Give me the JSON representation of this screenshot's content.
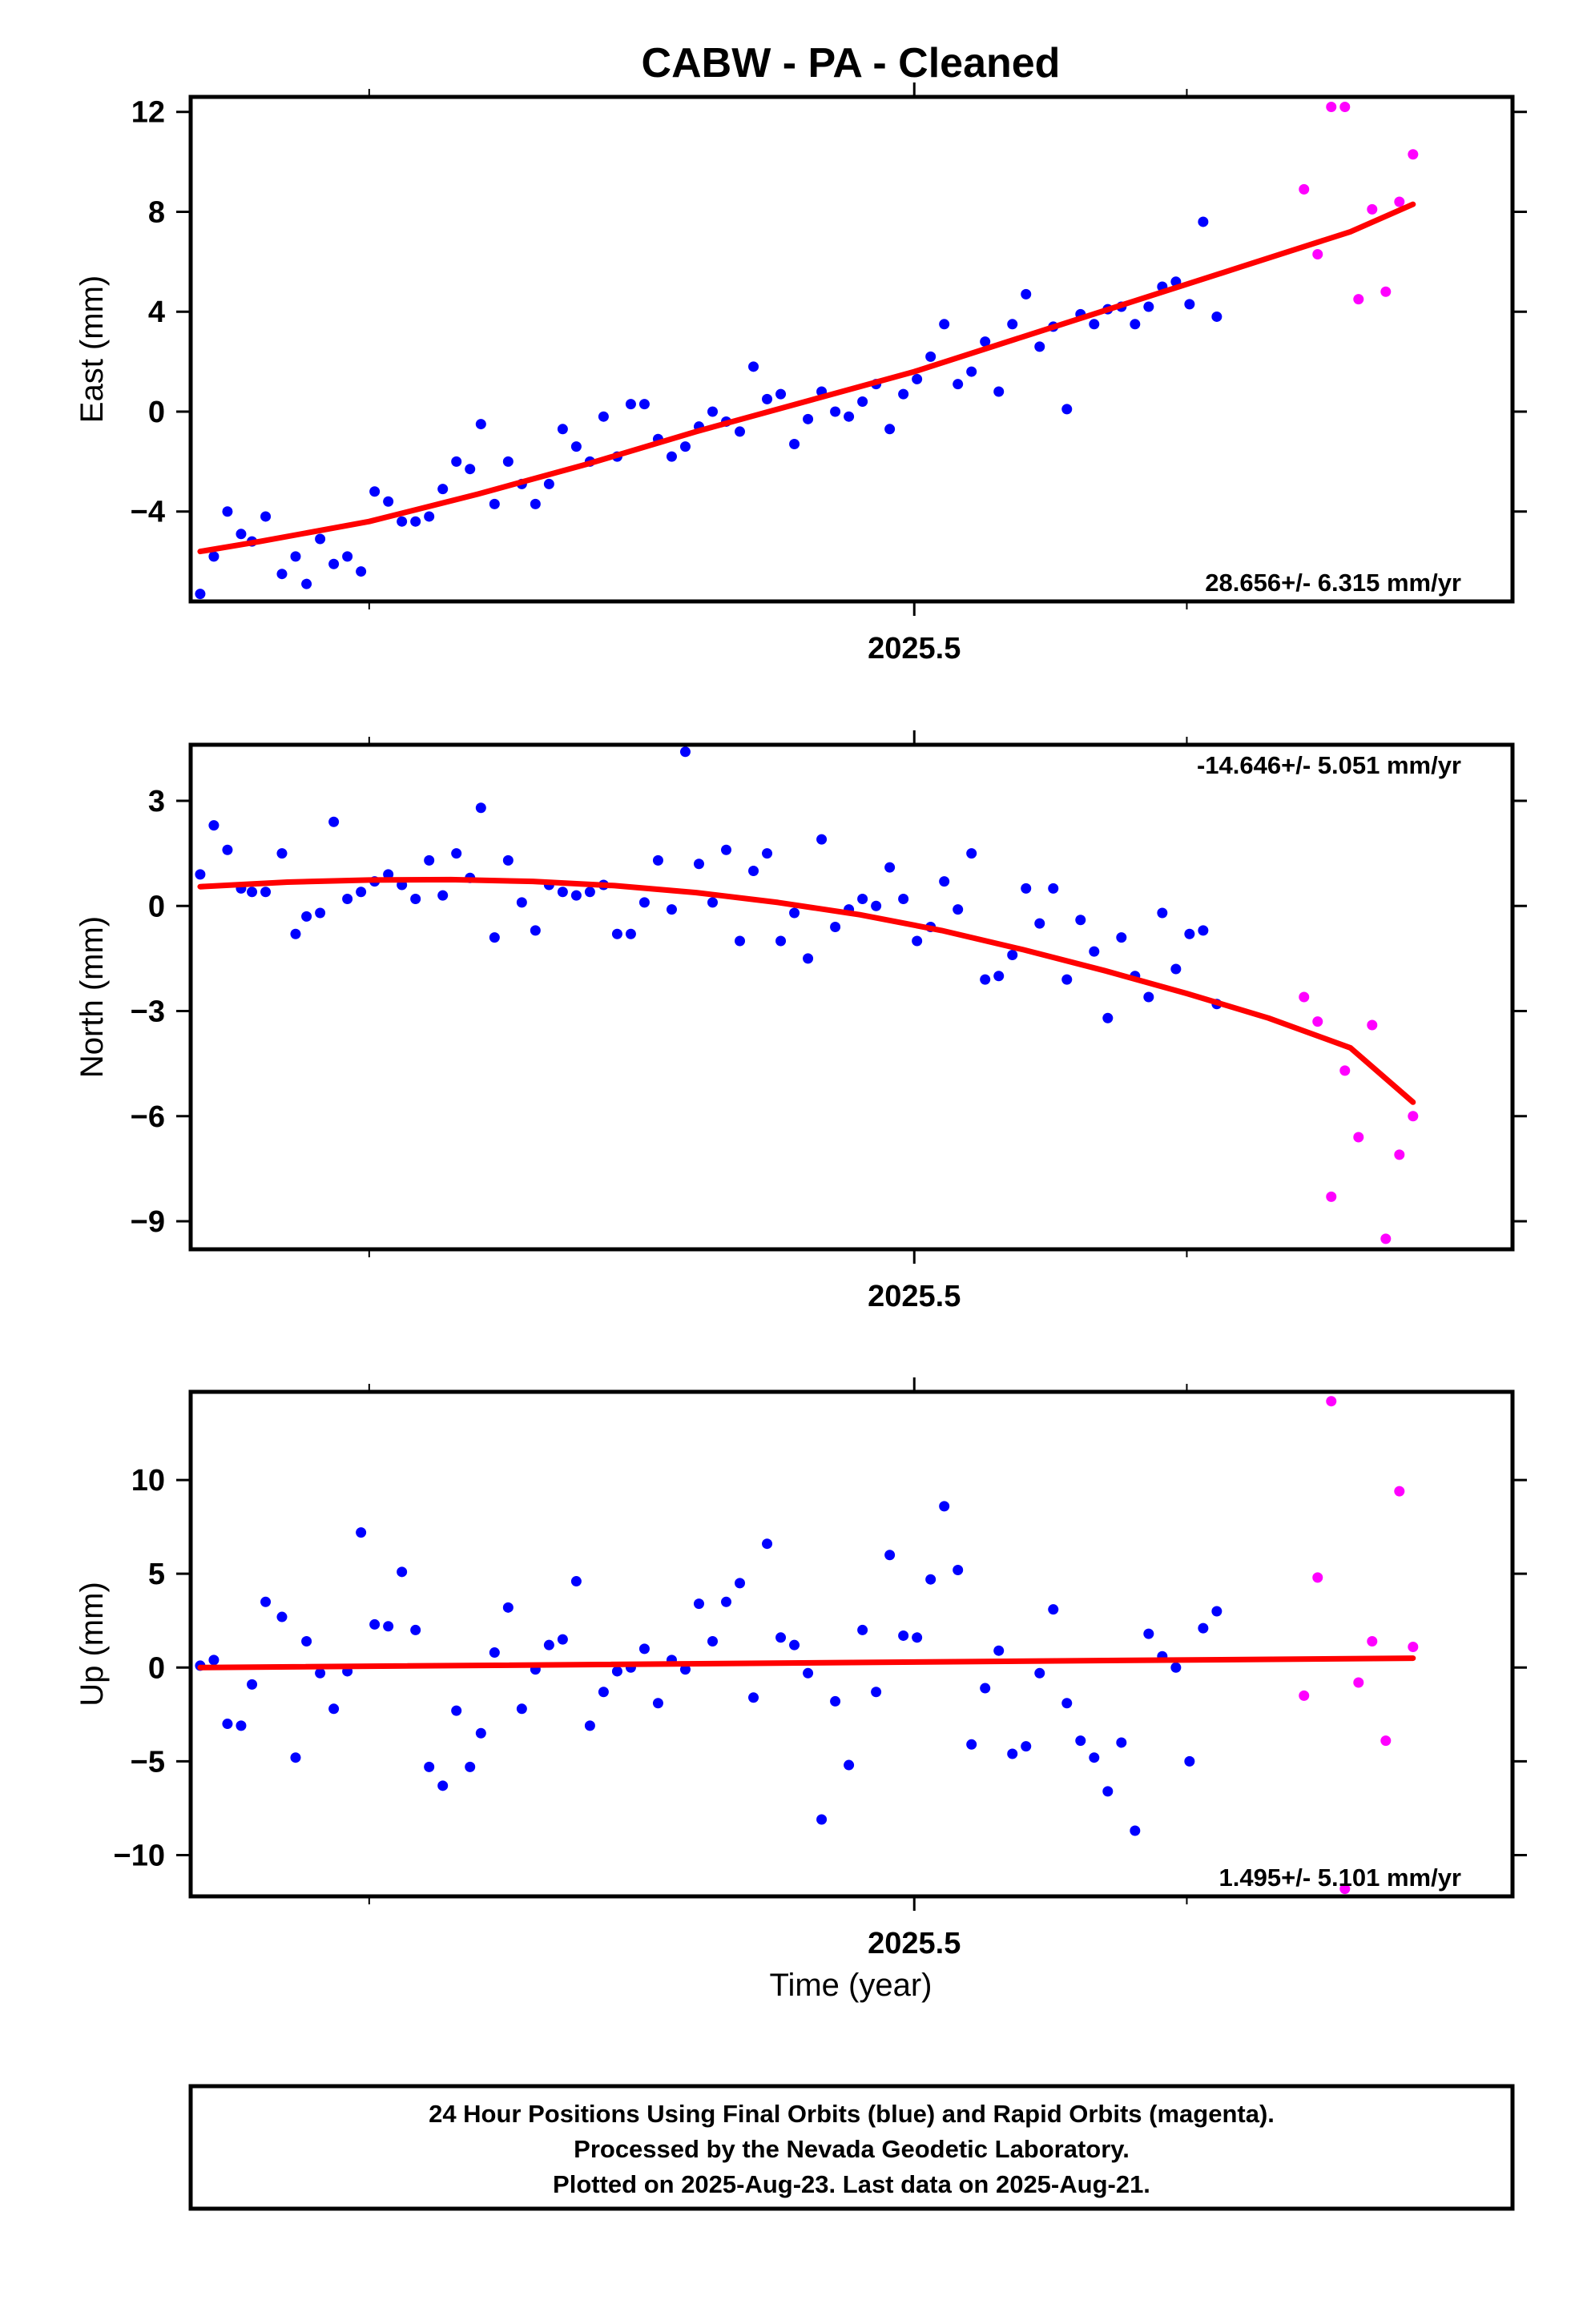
{
  "chart_data": {
    "type": "scatter",
    "title": "CABW  - PA - Cleaned",
    "xlabel": "Time (year)",
    "x_tick_label": "2025.5",
    "colors": {
      "final": "#0000ff",
      "rapid": "#ff00ff",
      "fit": "#ff0000"
    },
    "panels": [
      {
        "ylabel": "East (mm)",
        "ylim": [
          -7.6,
          12.6
        ],
        "yticks": [
          -4,
          0,
          4,
          8,
          12
        ],
        "rate": "28.656+/- 6.315 mm/yr",
        "rate_position": "bottom-right",
        "final": [
          [
            2025.238,
            -7.3
          ],
          [
            2025.243,
            -5.8
          ],
          [
            2025.248,
            -4.0
          ],
          [
            2025.253,
            -4.9
          ],
          [
            2025.257,
            -5.2
          ],
          [
            2025.262,
            -4.2
          ],
          [
            2025.268,
            -6.5
          ],
          [
            2025.273,
            -5.8
          ],
          [
            2025.277,
            -6.9
          ],
          [
            2025.282,
            -5.1
          ],
          [
            2025.287,
            -6.1
          ],
          [
            2025.292,
            -5.8
          ],
          [
            2025.297,
            -6.4
          ],
          [
            2025.302,
            -3.2
          ],
          [
            2025.307,
            -3.6
          ],
          [
            2025.312,
            -4.4
          ],
          [
            2025.317,
            -4.4
          ],
          [
            2025.322,
            -4.2
          ],
          [
            2025.327,
            -3.1
          ],
          [
            2025.332,
            -2.0
          ],
          [
            2025.337,
            -2.3
          ],
          [
            2025.341,
            -0.5
          ],
          [
            2025.346,
            -3.7
          ],
          [
            2025.351,
            -2.0
          ],
          [
            2025.356,
            -2.9
          ],
          [
            2025.361,
            -3.7
          ],
          [
            2025.366,
            -2.9
          ],
          [
            2025.371,
            -0.7
          ],
          [
            2025.376,
            -1.4
          ],
          [
            2025.381,
            -2.0
          ],
          [
            2025.386,
            -0.2
          ],
          [
            2025.391,
            -1.8
          ],
          [
            2025.396,
            0.3
          ],
          [
            2025.401,
            0.3
          ],
          [
            2025.406,
            -1.1
          ],
          [
            2025.411,
            -1.8
          ],
          [
            2025.416,
            -1.4
          ],
          [
            2025.421,
            -0.6
          ],
          [
            2025.426,
            0.0
          ],
          [
            2025.431,
            -0.4
          ],
          [
            2025.436,
            -0.8
          ],
          [
            2025.441,
            1.8
          ],
          [
            2025.446,
            0.5
          ],
          [
            2025.451,
            0.7
          ],
          [
            2025.456,
            -1.3
          ],
          [
            2025.461,
            -0.3
          ],
          [
            2025.466,
            0.8
          ],
          [
            2025.471,
            0.0
          ],
          [
            2025.476,
            -0.2
          ],
          [
            2025.481,
            0.4
          ],
          [
            2025.486,
            1.1
          ],
          [
            2025.491,
            -0.7
          ],
          [
            2025.496,
            0.7
          ],
          [
            2025.501,
            1.3
          ],
          [
            2025.506,
            2.2
          ],
          [
            2025.511,
            3.5
          ],
          [
            2025.516,
            1.1
          ],
          [
            2025.521,
            1.6
          ],
          [
            2025.526,
            2.8
          ],
          [
            2025.531,
            0.8
          ],
          [
            2025.536,
            3.5
          ],
          [
            2025.541,
            4.7
          ],
          [
            2025.546,
            2.6
          ],
          [
            2025.551,
            3.4
          ],
          [
            2025.556,
            0.1
          ],
          [
            2025.561,
            3.9
          ],
          [
            2025.566,
            3.5
          ],
          [
            2025.571,
            4.1
          ],
          [
            2025.576,
            4.2
          ],
          [
            2025.581,
            3.5
          ],
          [
            2025.586,
            4.2
          ],
          [
            2025.591,
            5.0
          ],
          [
            2025.596,
            5.2
          ],
          [
            2025.601,
            4.3
          ],
          [
            2025.606,
            7.6
          ],
          [
            2025.611,
            3.8
          ]
        ],
        "rapid": [
          [
            2025.643,
            8.9
          ],
          [
            2025.648,
            6.3
          ],
          [
            2025.653,
            12.2
          ],
          [
            2025.658,
            12.2
          ],
          [
            2025.663,
            4.5
          ],
          [
            2025.668,
            8.1
          ],
          [
            2025.673,
            4.8
          ],
          [
            2025.678,
            8.4
          ],
          [
            2025.683,
            10.3
          ]
        ],
        "fit": [
          [
            2025.238,
            -5.6
          ],
          [
            2025.26,
            -5.2
          ],
          [
            2025.3,
            -4.4
          ],
          [
            2025.34,
            -3.3
          ],
          [
            2025.38,
            -2.1
          ],
          [
            2025.42,
            -0.8
          ],
          [
            2025.46,
            0.4
          ],
          [
            2025.5,
            1.6
          ],
          [
            2025.54,
            3.0
          ],
          [
            2025.58,
            4.4
          ],
          [
            2025.62,
            5.8
          ],
          [
            2025.66,
            7.2
          ],
          [
            2025.683,
            8.3
          ]
        ]
      },
      {
        "ylabel": "North (mm)",
        "ylim": [
          -9.8,
          4.6
        ],
        "yticks": [
          -9,
          -6,
          -3,
          0,
          3
        ],
        "rate": "-14.646+/- 5.051 mm/yr",
        "rate_position": "top-right",
        "final": [
          [
            2025.238,
            0.9
          ],
          [
            2025.243,
            2.3
          ],
          [
            2025.248,
            1.6
          ],
          [
            2025.253,
            0.5
          ],
          [
            2025.257,
            0.4
          ],
          [
            2025.262,
            0.4
          ],
          [
            2025.268,
            1.5
          ],
          [
            2025.273,
            -0.8
          ],
          [
            2025.277,
            -0.3
          ],
          [
            2025.282,
            -0.2
          ],
          [
            2025.287,
            2.4
          ],
          [
            2025.292,
            0.2
          ],
          [
            2025.297,
            0.4
          ],
          [
            2025.302,
            0.7
          ],
          [
            2025.307,
            0.9
          ],
          [
            2025.312,
            0.6
          ],
          [
            2025.317,
            0.2
          ],
          [
            2025.322,
            1.3
          ],
          [
            2025.327,
            0.3
          ],
          [
            2025.332,
            1.5
          ],
          [
            2025.337,
            0.8
          ],
          [
            2025.341,
            2.8
          ],
          [
            2025.346,
            -0.9
          ],
          [
            2025.351,
            1.3
          ],
          [
            2025.356,
            0.1
          ],
          [
            2025.361,
            -0.7
          ],
          [
            2025.366,
            0.6
          ],
          [
            2025.371,
            0.4
          ],
          [
            2025.376,
            0.3
          ],
          [
            2025.381,
            0.4
          ],
          [
            2025.386,
            0.6
          ],
          [
            2025.391,
            -0.8
          ],
          [
            2025.396,
            -0.8
          ],
          [
            2025.401,
            0.1
          ],
          [
            2025.406,
            1.3
          ],
          [
            2025.411,
            -0.1
          ],
          [
            2025.416,
            4.4
          ],
          [
            2025.421,
            1.2
          ],
          [
            2025.426,
            0.1
          ],
          [
            2025.431,
            1.6
          ],
          [
            2025.436,
            -1.0
          ],
          [
            2025.441,
            1.0
          ],
          [
            2025.446,
            1.5
          ],
          [
            2025.451,
            -1.0
          ],
          [
            2025.456,
            -0.2
          ],
          [
            2025.461,
            -1.5
          ],
          [
            2025.466,
            1.9
          ],
          [
            2025.471,
            -0.6
          ],
          [
            2025.476,
            -0.1
          ],
          [
            2025.481,
            0.2
          ],
          [
            2025.486,
            0.0
          ],
          [
            2025.491,
            1.1
          ],
          [
            2025.496,
            0.2
          ],
          [
            2025.501,
            -1.0
          ],
          [
            2025.506,
            -0.6
          ],
          [
            2025.511,
            0.7
          ],
          [
            2025.516,
            -0.1
          ],
          [
            2025.521,
            1.5
          ],
          [
            2025.526,
            -2.1
          ],
          [
            2025.531,
            -2.0
          ],
          [
            2025.536,
            -1.4
          ],
          [
            2025.541,
            0.5
          ],
          [
            2025.546,
            -0.5
          ],
          [
            2025.551,
            0.5
          ],
          [
            2025.556,
            -2.1
          ],
          [
            2025.561,
            -0.4
          ],
          [
            2025.566,
            -1.3
          ],
          [
            2025.571,
            -3.2
          ],
          [
            2025.576,
            -0.9
          ],
          [
            2025.581,
            -2.0
          ],
          [
            2025.586,
            -2.6
          ],
          [
            2025.591,
            -0.2
          ],
          [
            2025.596,
            -1.8
          ],
          [
            2025.601,
            -0.8
          ],
          [
            2025.606,
            -0.7
          ],
          [
            2025.611,
            -2.8
          ]
        ],
        "rapid": [
          [
            2025.643,
            -2.6
          ],
          [
            2025.648,
            -3.3
          ],
          [
            2025.653,
            -8.3
          ],
          [
            2025.658,
            -4.7
          ],
          [
            2025.663,
            -6.6
          ],
          [
            2025.668,
            -3.4
          ],
          [
            2025.673,
            -9.5
          ],
          [
            2025.678,
            -7.1
          ],
          [
            2025.683,
            -6.0
          ]
        ],
        "fit": [
          [
            2025.238,
            0.55
          ],
          [
            2025.27,
            0.68
          ],
          [
            2025.3,
            0.74
          ],
          [
            2025.33,
            0.75
          ],
          [
            2025.36,
            0.7
          ],
          [
            2025.39,
            0.58
          ],
          [
            2025.42,
            0.38
          ],
          [
            2025.45,
            0.1
          ],
          [
            2025.48,
            -0.25
          ],
          [
            2025.51,
            -0.7
          ],
          [
            2025.54,
            -1.25
          ],
          [
            2025.57,
            -1.85
          ],
          [
            2025.6,
            -2.5
          ],
          [
            2025.63,
            -3.2
          ],
          [
            2025.66,
            -4.05
          ],
          [
            2025.683,
            -5.6
          ]
        ]
      },
      {
        "ylabel": "Up (mm)",
        "ylim": [
          -12.2,
          14.7
        ],
        "yticks": [
          -10,
          -5,
          0,
          5,
          10
        ],
        "rate": "1.495+/- 5.101 mm/yr",
        "rate_position": "bottom-right",
        "final": [
          [
            2025.238,
            0.1
          ],
          [
            2025.243,
            0.4
          ],
          [
            2025.248,
            -3.0
          ],
          [
            2025.253,
            -3.1
          ],
          [
            2025.257,
            -0.9
          ],
          [
            2025.262,
            3.5
          ],
          [
            2025.268,
            2.7
          ],
          [
            2025.273,
            -4.8
          ],
          [
            2025.277,
            1.4
          ],
          [
            2025.282,
            -0.3
          ],
          [
            2025.287,
            -2.2
          ],
          [
            2025.292,
            -0.2
          ],
          [
            2025.297,
            7.2
          ],
          [
            2025.302,
            2.3
          ],
          [
            2025.307,
            2.2
          ],
          [
            2025.312,
            5.1
          ],
          [
            2025.317,
            2.0
          ],
          [
            2025.322,
            -5.3
          ],
          [
            2025.327,
            -6.3
          ],
          [
            2025.332,
            -2.3
          ],
          [
            2025.337,
            -5.3
          ],
          [
            2025.341,
            -3.5
          ],
          [
            2025.346,
            0.8
          ],
          [
            2025.351,
            3.2
          ],
          [
            2025.356,
            -2.2
          ],
          [
            2025.361,
            -0.1
          ],
          [
            2025.366,
            1.2
          ],
          [
            2025.371,
            1.5
          ],
          [
            2025.376,
            4.6
          ],
          [
            2025.381,
            -3.1
          ],
          [
            2025.386,
            -1.3
          ],
          [
            2025.391,
            -0.2
          ],
          [
            2025.396,
            0.0
          ],
          [
            2025.401,
            1.0
          ],
          [
            2025.406,
            -1.9
          ],
          [
            2025.411,
            0.4
          ],
          [
            2025.416,
            -0.1
          ],
          [
            2025.421,
            3.4
          ],
          [
            2025.426,
            1.4
          ],
          [
            2025.431,
            3.5
          ],
          [
            2025.436,
            4.5
          ],
          [
            2025.441,
            -1.6
          ],
          [
            2025.446,
            6.6
          ],
          [
            2025.451,
            1.6
          ],
          [
            2025.456,
            1.2
          ],
          [
            2025.461,
            -0.3
          ],
          [
            2025.466,
            -8.1
          ],
          [
            2025.471,
            -1.8
          ],
          [
            2025.476,
            -5.2
          ],
          [
            2025.481,
            2.0
          ],
          [
            2025.486,
            -1.3
          ],
          [
            2025.491,
            6.0
          ],
          [
            2025.496,
            1.7
          ],
          [
            2025.501,
            1.6
          ],
          [
            2025.506,
            4.7
          ],
          [
            2025.511,
            8.6
          ],
          [
            2025.516,
            5.2
          ],
          [
            2025.521,
            -4.1
          ],
          [
            2025.526,
            -1.1
          ],
          [
            2025.531,
            0.9
          ],
          [
            2025.536,
            -4.6
          ],
          [
            2025.541,
            -4.2
          ],
          [
            2025.546,
            -0.3
          ],
          [
            2025.551,
            3.1
          ],
          [
            2025.556,
            -1.9
          ],
          [
            2025.561,
            -3.9
          ],
          [
            2025.566,
            -4.8
          ],
          [
            2025.571,
            -6.6
          ],
          [
            2025.576,
            -4.0
          ],
          [
            2025.581,
            -8.7
          ],
          [
            2025.586,
            1.8
          ],
          [
            2025.591,
            0.6
          ],
          [
            2025.596,
            0.0
          ],
          [
            2025.601,
            -5.0
          ],
          [
            2025.606,
            2.1
          ],
          [
            2025.611,
            3.0
          ]
        ],
        "rapid": [
          [
            2025.643,
            -1.5
          ],
          [
            2025.648,
            4.8
          ],
          [
            2025.653,
            14.2
          ],
          [
            2025.658,
            -11.8
          ],
          [
            2025.663,
            -0.8
          ],
          [
            2025.668,
            1.4
          ],
          [
            2025.673,
            -3.9
          ],
          [
            2025.678,
            9.4
          ],
          [
            2025.683,
            1.1
          ]
        ],
        "fit": [
          [
            2025.238,
            0.0
          ],
          [
            2025.683,
            0.5
          ]
        ]
      }
    ]
  },
  "footer": {
    "line1": "24 Hour Positions Using Final Orbits (blue) and Rapid Orbits (magenta).",
    "line2": "Processed by the Nevada Geodetic Laboratory.",
    "line3": "Plotted on 2025-Aug-23. Last data on 2025-Aug-21."
  }
}
